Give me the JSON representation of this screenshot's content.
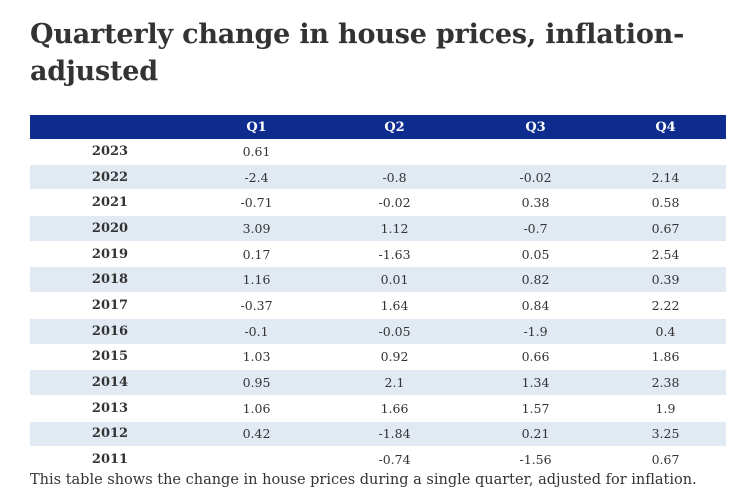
{
  "title": "Quarterly change in house prices, inflation-adjusted",
  "table": {
    "headers": [
      "",
      "Q1",
      "Q2",
      "Q3",
      "Q4"
    ],
    "rows": [
      [
        "2023",
        "0.61",
        "",
        "",
        ""
      ],
      [
        "2022",
        "-2.4",
        "-0.8",
        "-0.02",
        "2.14"
      ],
      [
        "2021",
        "-0.71",
        "-0.02",
        "0.38",
        "0.58"
      ],
      [
        "2020",
        "3.09",
        "1.12",
        "-0.7",
        "0.67"
      ],
      [
        "2019",
        "0.17",
        "-1.63",
        "0.05",
        "2.54"
      ],
      [
        "2018",
        "1.16",
        "0.01",
        "0.82",
        "0.39"
      ],
      [
        "2017",
        "-0.37",
        "1.64",
        "0.84",
        "2.22"
      ],
      [
        "2016",
        "-0.1",
        "-0.05",
        "-1.9",
        "0.4"
      ],
      [
        "2015",
        "1.03",
        "0.92",
        "0.66",
        "1.86"
      ],
      [
        "2014",
        "0.95",
        "2.1",
        "1.34",
        "2.38"
      ],
      [
        "2013",
        "1.06",
        "1.66",
        "1.57",
        "1.9"
      ],
      [
        "2012",
        "0.42",
        "-1.84",
        "0.21",
        "3.25"
      ],
      [
        "2011",
        "",
        "-0.74",
        "-1.56",
        "0.67"
      ]
    ]
  },
  "note": "This table shows the change in house prices during a single quarter, adjusted for inflation.",
  "colors": {
    "header_bg": "#0e2c8e",
    "stripe_bg": "#e1e9f2",
    "text": "#333333"
  }
}
